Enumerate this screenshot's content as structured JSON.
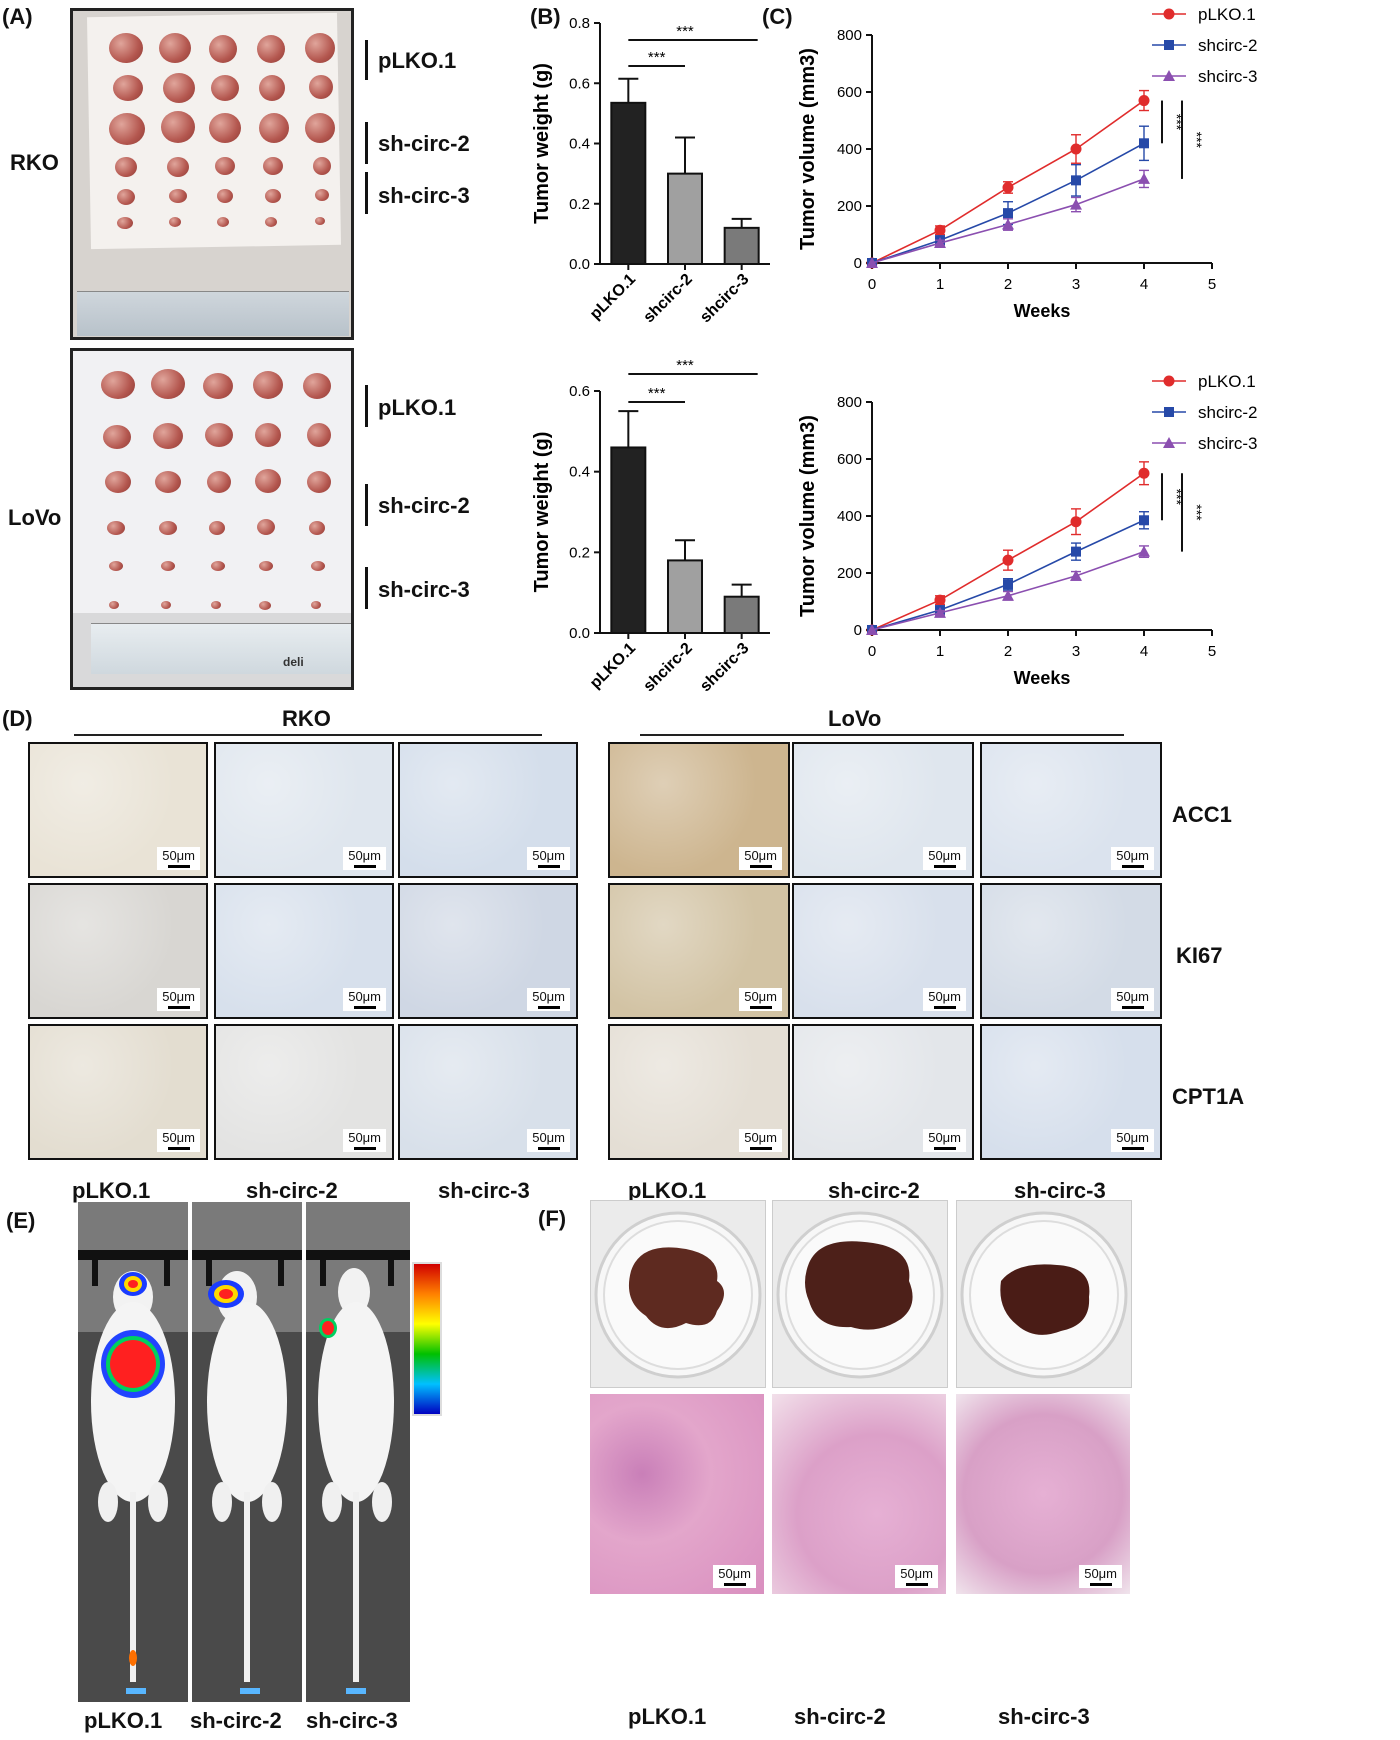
{
  "panel_labels": {
    "A": "(A)",
    "B": "(B)",
    "C": "(C)",
    "D": "(D)",
    "E": "(E)",
    "F": "(F)"
  },
  "panelA": {
    "rows": [
      {
        "cell": "RKO",
        "groups": [
          "pLKO.1",
          "sh-circ-2",
          "sh-circ-3"
        ]
      },
      {
        "cell": "LoVo",
        "groups": [
          "pLKO.1",
          "sh-circ-2",
          "sh-circ-3"
        ]
      }
    ],
    "ruler_brand": "deli"
  },
  "chart_data": [
    {
      "type": "bar",
      "panel": "B-top",
      "categories": [
        "pLKO.1",
        "shcirc-2",
        "shcirc-3"
      ],
      "values": [
        0.535,
        0.3,
        0.12
      ],
      "errors": [
        0.08,
        0.12,
        0.03
      ],
      "colors": [
        "#222222",
        "#a0a0a0",
        "#7a7a7a"
      ],
      "ylabel": "Tumor weight (g)",
      "ylim": [
        0,
        0.8
      ],
      "yticks": [
        "0.0",
        "0.2",
        "0.4",
        "0.6",
        "0.8"
      ],
      "significance": [
        {
          "from": 0,
          "to": 1,
          "label": "***"
        },
        {
          "from": 0,
          "to": 2,
          "label": "***"
        }
      ]
    },
    {
      "type": "bar",
      "panel": "B-bottom",
      "categories": [
        "pLKO.1",
        "shcirc-2",
        "shcirc-3"
      ],
      "values": [
        0.46,
        0.18,
        0.09
      ],
      "errors": [
        0.09,
        0.05,
        0.03
      ],
      "colors": [
        "#222222",
        "#a0a0a0",
        "#7a7a7a"
      ],
      "ylabel": "Tumor weight (g)",
      "ylim": [
        0,
        0.6
      ],
      "yticks": [
        "0.0",
        "0.2",
        "0.4",
        "0.6"
      ],
      "significance": [
        {
          "from": 0,
          "to": 1,
          "label": "***"
        },
        {
          "from": 0,
          "to": 2,
          "label": "***"
        }
      ]
    },
    {
      "type": "line",
      "panel": "C-top",
      "x": [
        0,
        1,
        2,
        3,
        4
      ],
      "xlabel": "Weeks",
      "ylabel": "Tumor volume (mm3)",
      "xlim": [
        0,
        5
      ],
      "ylim": [
        0,
        800
      ],
      "xticks": [
        "0",
        "1",
        "2",
        "3",
        "4",
        "5"
      ],
      "yticks": [
        "0",
        "200",
        "400",
        "600",
        "800"
      ],
      "series": [
        {
          "name": "pLKO.1",
          "values": [
            0,
            115,
            265,
            400,
            570
          ],
          "errors": [
            0,
            15,
            20,
            50,
            35
          ],
          "color": "#e02c2c",
          "marker": "circle"
        },
        {
          "name": "shcirc-2",
          "values": [
            0,
            80,
            175,
            290,
            420
          ],
          "errors": [
            0,
            15,
            40,
            55,
            60
          ],
          "color": "#2649a8",
          "marker": "square"
        },
        {
          "name": "shcirc-3",
          "values": [
            0,
            70,
            135,
            205,
            295
          ],
          "errors": [
            0,
            10,
            20,
            25,
            30
          ],
          "color": "#8b4fb0",
          "marker": "triangle"
        }
      ],
      "significance": [
        "***",
        "***"
      ]
    },
    {
      "type": "line",
      "panel": "C-bottom",
      "x": [
        0,
        1,
        2,
        3,
        4
      ],
      "xlabel": "Weeks",
      "ylabel": "Tumor volume (mm3)",
      "xlim": [
        0,
        5
      ],
      "ylim": [
        0,
        800
      ],
      "xticks": [
        "0",
        "1",
        "2",
        "3",
        "4",
        "5"
      ],
      "yticks": [
        "0",
        "200",
        "400",
        "600",
        "800"
      ],
      "series": [
        {
          "name": "pLKO.1",
          "values": [
            0,
            105,
            245,
            380,
            550
          ],
          "errors": [
            0,
            15,
            35,
            45,
            40
          ],
          "color": "#e02c2c",
          "marker": "circle"
        },
        {
          "name": "shcirc-2",
          "values": [
            0,
            70,
            160,
            275,
            385
          ],
          "errors": [
            0,
            10,
            20,
            30,
            30
          ],
          "color": "#2649a8",
          "marker": "square"
        },
        {
          "name": "shcirc-3",
          "values": [
            0,
            60,
            120,
            190,
            275
          ],
          "errors": [
            0,
            8,
            15,
            15,
            20
          ],
          "color": "#8b4fb0",
          "marker": "triangle"
        }
      ],
      "significance": [
        "***",
        "***"
      ]
    }
  ],
  "panelD": {
    "headings": [
      "RKO",
      "LoVo"
    ],
    "markers": [
      "ACC1",
      "KI67",
      "CPT1A"
    ],
    "scale": "50μm"
  },
  "panelE": {
    "top_labels": [
      "pLKO.1",
      "sh-circ-2",
      "sh-circ-3"
    ],
    "bottom_labels": [
      "pLKO.1",
      "sh-circ-2",
      "sh-circ-3"
    ]
  },
  "panelF": {
    "top_labels": [
      "pLKO.1",
      "sh-circ-2",
      "sh-circ-3"
    ],
    "bottom_labels": [
      "pLKO.1",
      "sh-circ-2",
      "sh-circ-3"
    ],
    "scale": "50μm"
  }
}
